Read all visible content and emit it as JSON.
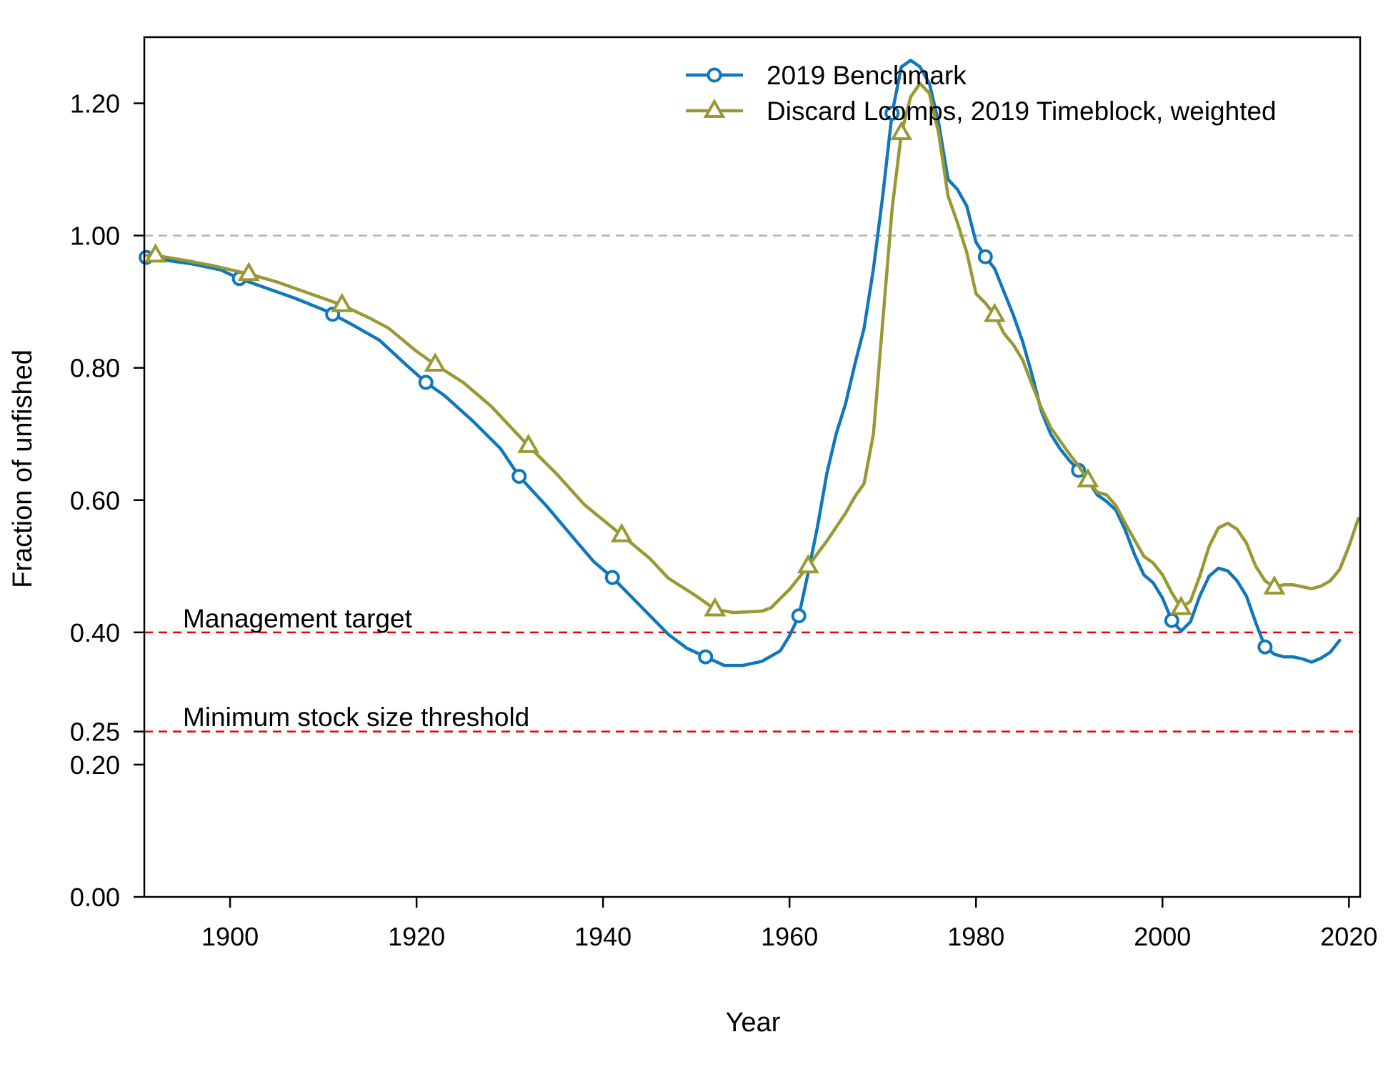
{
  "colors": {
    "benchmark": "#1177bb",
    "discard": "#999933",
    "reference": "#ee0000",
    "unfished": "#b3b3b3",
    "axis": "#000000"
  },
  "chart_data": {
    "type": "line",
    "title": "",
    "xlabel": "Year",
    "ylabel": "Fraction of unfished",
    "xlim": [
      1890.8,
      2021.2
    ],
    "ylim": [
      0.0,
      1.3
    ],
    "x_ticks": [
      1900,
      1920,
      1940,
      1960,
      1980,
      2000,
      2020
    ],
    "x_tick_labels": [
      "1900",
      "1920",
      "1940",
      "1960",
      "1980",
      "2000",
      "2020"
    ],
    "y_ticks": [
      0.0,
      0.2,
      0.25,
      0.4,
      0.6,
      0.8,
      1.0,
      1.2
    ],
    "y_tick_labels": [
      "0.00",
      "0.20",
      "0.25",
      "0.40",
      "0.60",
      "0.80",
      "1.00",
      "1.20"
    ],
    "legend_position": "top-right",
    "grid": false,
    "reference_lines": [
      {
        "y": 1.0,
        "style": "dashed",
        "color": "#b3b3b3",
        "label": ""
      },
      {
        "y": 0.4,
        "style": "dashed",
        "color": "#ee0000",
        "label": "Management target"
      },
      {
        "y": 0.25,
        "style": "dashed",
        "color": "#ee0000",
        "label": "Minimum stock size threshold"
      }
    ],
    "series": [
      {
        "name": "2019 Benchmark",
        "marker": "circle",
        "color": "#1177bb",
        "marker_years": [
          1891,
          1901,
          1911,
          1921,
          1931,
          1941,
          1951,
          1961,
          1971,
          1981,
          1991,
          2001,
          2011
        ],
        "points": [
          [
            1891,
            0.967
          ],
          [
            1893,
            0.963
          ],
          [
            1896,
            0.957
          ],
          [
            1899,
            0.948
          ],
          [
            1901,
            0.935
          ],
          [
            1904,
            0.92
          ],
          [
            1907,
            0.905
          ],
          [
            1910,
            0.888
          ],
          [
            1911,
            0.881
          ],
          [
            1913,
            0.866
          ],
          [
            1916,
            0.842
          ],
          [
            1919,
            0.803
          ],
          [
            1921,
            0.778
          ],
          [
            1923,
            0.758
          ],
          [
            1926,
            0.72
          ],
          [
            1929,
            0.678
          ],
          [
            1931,
            0.636
          ],
          [
            1934,
            0.59
          ],
          [
            1937,
            0.54
          ],
          [
            1939,
            0.507
          ],
          [
            1941,
            0.483
          ],
          [
            1944,
            0.44
          ],
          [
            1947,
            0.397
          ],
          [
            1949,
            0.376
          ],
          [
            1951,
            0.363
          ],
          [
            1953,
            0.35
          ],
          [
            1955,
            0.35
          ],
          [
            1957,
            0.356
          ],
          [
            1959,
            0.372
          ],
          [
            1960,
            0.395
          ],
          [
            1961,
            0.425
          ],
          [
            1962,
            0.49
          ],
          [
            1963,
            0.56
          ],
          [
            1964,
            0.64
          ],
          [
            1965,
            0.7
          ],
          [
            1966,
            0.745
          ],
          [
            1967,
            0.805
          ],
          [
            1968,
            0.86
          ],
          [
            1969,
            0.95
          ],
          [
            1970,
            1.06
          ],
          [
            1971,
            1.185
          ],
          [
            1972,
            1.255
          ],
          [
            1973,
            1.265
          ],
          [
            1974,
            1.255
          ],
          [
            1975,
            1.23
          ],
          [
            1976,
            1.17
          ],
          [
            1977,
            1.085
          ],
          [
            1978,
            1.07
          ],
          [
            1979,
            1.045
          ],
          [
            1980,
            0.99
          ],
          [
            1981,
            0.968
          ],
          [
            1982,
            0.95
          ],
          [
            1983,
            0.915
          ],
          [
            1984,
            0.88
          ],
          [
            1985,
            0.84
          ],
          [
            1986,
            0.79
          ],
          [
            1987,
            0.735
          ],
          [
            1988,
            0.7
          ],
          [
            1989,
            0.678
          ],
          [
            1990,
            0.66
          ],
          [
            1991,
            0.645
          ],
          [
            1992,
            0.63
          ],
          [
            1993,
            0.608
          ],
          [
            1994,
            0.598
          ],
          [
            1995,
            0.585
          ],
          [
            1996,
            0.555
          ],
          [
            1997,
            0.518
          ],
          [
            1998,
            0.487
          ],
          [
            1999,
            0.475
          ],
          [
            2000,
            0.452
          ],
          [
            2001,
            0.418
          ],
          [
            2002,
            0.402
          ],
          [
            2003,
            0.416
          ],
          [
            2004,
            0.455
          ],
          [
            2005,
            0.485
          ],
          [
            2006,
            0.497
          ],
          [
            2007,
            0.493
          ],
          [
            2008,
            0.478
          ],
          [
            2009,
            0.455
          ],
          [
            2010,
            0.415
          ],
          [
            2011,
            0.378
          ],
          [
            2012,
            0.367
          ],
          [
            2013,
            0.363
          ],
          [
            2014,
            0.363
          ],
          [
            2015,
            0.36
          ],
          [
            2016,
            0.355
          ],
          [
            2017,
            0.361
          ],
          [
            2018,
            0.37
          ],
          [
            2019,
            0.388
          ]
        ]
      },
      {
        "name": "Discard Lcomps, 2019 Timeblock, weighted",
        "marker": "triangle",
        "color": "#999933",
        "marker_years": [
          1892,
          1902,
          1912,
          1922,
          1932,
          1942,
          1952,
          1962,
          1972,
          1982,
          1992,
          2002,
          2012
        ],
        "points": [
          [
            1891,
            0.97
          ],
          [
            1892,
            0.97
          ],
          [
            1895,
            0.963
          ],
          [
            1898,
            0.955
          ],
          [
            1902,
            0.942
          ],
          [
            1905,
            0.93
          ],
          [
            1908,
            0.915
          ],
          [
            1912,
            0.895
          ],
          [
            1915,
            0.875
          ],
          [
            1917,
            0.86
          ],
          [
            1920,
            0.825
          ],
          [
            1922,
            0.805
          ],
          [
            1925,
            0.778
          ],
          [
            1928,
            0.742
          ],
          [
            1932,
            0.682
          ],
          [
            1935,
            0.64
          ],
          [
            1938,
            0.593
          ],
          [
            1942,
            0.547
          ],
          [
            1945,
            0.512
          ],
          [
            1947,
            0.482
          ],
          [
            1950,
            0.455
          ],
          [
            1952,
            0.435
          ],
          [
            1954,
            0.43
          ],
          [
            1957,
            0.432
          ],
          [
            1958,
            0.437
          ],
          [
            1960,
            0.465
          ],
          [
            1962,
            0.5
          ],
          [
            1964,
            0.538
          ],
          [
            1966,
            0.58
          ],
          [
            1967,
            0.605
          ],
          [
            1968,
            0.625
          ],
          [
            1969,
            0.7
          ],
          [
            1970,
            0.87
          ],
          [
            1971,
            1.04
          ],
          [
            1972,
            1.155
          ],
          [
            1973,
            1.21
          ],
          [
            1974,
            1.23
          ],
          [
            1975,
            1.215
          ],
          [
            1976,
            1.155
          ],
          [
            1977,
            1.06
          ],
          [
            1978,
            1.02
          ],
          [
            1979,
            0.975
          ],
          [
            1980,
            0.912
          ],
          [
            1981,
            0.898
          ],
          [
            1982,
            0.88
          ],
          [
            1983,
            0.852
          ],
          [
            1984,
            0.835
          ],
          [
            1985,
            0.812
          ],
          [
            1986,
            0.775
          ],
          [
            1987,
            0.74
          ],
          [
            1988,
            0.71
          ],
          [
            1989,
            0.69
          ],
          [
            1990,
            0.67
          ],
          [
            1991,
            0.652
          ],
          [
            1992,
            0.63
          ],
          [
            1993,
            0.612
          ],
          [
            1994,
            0.608
          ],
          [
            1995,
            0.592
          ],
          [
            1996,
            0.565
          ],
          [
            1997,
            0.54
          ],
          [
            1998,
            0.515
          ],
          [
            1999,
            0.505
          ],
          [
            2000,
            0.487
          ],
          [
            2001,
            0.46
          ],
          [
            2002,
            0.437
          ],
          [
            2003,
            0.447
          ],
          [
            2004,
            0.485
          ],
          [
            2005,
            0.53
          ],
          [
            2006,
            0.558
          ],
          [
            2007,
            0.565
          ],
          [
            2008,
            0.556
          ],
          [
            2009,
            0.535
          ],
          [
            2010,
            0.5
          ],
          [
            2011,
            0.478
          ],
          [
            2012,
            0.468
          ],
          [
            2013,
            0.472
          ],
          [
            2014,
            0.472
          ],
          [
            2015,
            0.469
          ],
          [
            2016,
            0.466
          ],
          [
            2017,
            0.47
          ],
          [
            2018,
            0.478
          ],
          [
            2019,
            0.495
          ],
          [
            2020,
            0.53
          ],
          [
            2021,
            0.572
          ]
        ]
      }
    ]
  }
}
